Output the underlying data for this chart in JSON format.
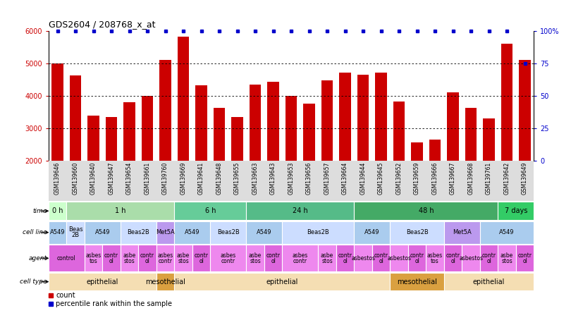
{
  "title": "GDS2604 / 208768_x_at",
  "samples": [
    "GSM139646",
    "GSM139660",
    "GSM139640",
    "GSM139647",
    "GSM139654",
    "GSM139661",
    "GSM139760",
    "GSM139669",
    "GSM139641",
    "GSM139648",
    "GSM139655",
    "GSM139663",
    "GSM139643",
    "GSM139653",
    "GSM139656",
    "GSM139657",
    "GSM139664",
    "GSM139644",
    "GSM139645",
    "GSM139652",
    "GSM139659",
    "GSM139666",
    "GSM139667",
    "GSM139668",
    "GSM139761",
    "GSM139642",
    "GSM139649"
  ],
  "counts": [
    4980,
    4620,
    3380,
    3340,
    3800,
    4000,
    5100,
    5820,
    4320,
    3620,
    3340,
    4330,
    4420,
    4000,
    3760,
    4460,
    4700,
    4650,
    4700,
    3820,
    2560,
    2640,
    4100,
    3620,
    3290,
    5600,
    5100
  ],
  "percentiles": [
    100,
    100,
    100,
    100,
    100,
    100,
    100,
    100,
    100,
    100,
    100,
    100,
    100,
    100,
    100,
    100,
    100,
    100,
    100,
    100,
    100,
    100,
    100,
    100,
    100,
    100,
    75
  ],
  "bar_color": "#cc0000",
  "dot_color": "#0000cc",
  "ymin": 2000,
  "ymax": 6000,
  "yticks": [
    2000,
    3000,
    4000,
    5000,
    6000
  ],
  "y2ticks": [
    0,
    25,
    50,
    75,
    100
  ],
  "y2labels": [
    "0",
    "25",
    "50",
    "75",
    "100%"
  ],
  "grid_dotted_at": [
    3000,
    4000,
    5000
  ],
  "time_segments": [
    {
      "text": "0 h",
      "start": 0,
      "end": 1,
      "color": "#ccffcc"
    },
    {
      "text": "1 h",
      "start": 1,
      "end": 7,
      "color": "#aaddaa"
    },
    {
      "text": "6 h",
      "start": 7,
      "end": 11,
      "color": "#66cc99"
    },
    {
      "text": "24 h",
      "start": 11,
      "end": 17,
      "color": "#55bb88"
    },
    {
      "text": "48 h",
      "start": 17,
      "end": 25,
      "color": "#44aa66"
    },
    {
      "text": "7 days",
      "start": 25,
      "end": 27,
      "color": "#33cc66"
    }
  ],
  "cellline_segments": [
    {
      "text": "A549",
      "start": 0,
      "end": 1,
      "color": "#aaccee"
    },
    {
      "text": "Beas\n2B",
      "start": 1,
      "end": 2,
      "color": "#ccddff"
    },
    {
      "text": "A549",
      "start": 2,
      "end": 4,
      "color": "#aaccee"
    },
    {
      "text": "Beas2B",
      "start": 4,
      "end": 6,
      "color": "#ccddff"
    },
    {
      "text": "Met5A",
      "start": 6,
      "end": 7,
      "color": "#bb99ee"
    },
    {
      "text": "A549",
      "start": 7,
      "end": 9,
      "color": "#aaccee"
    },
    {
      "text": "Beas2B",
      "start": 9,
      "end": 11,
      "color": "#ccddff"
    },
    {
      "text": "A549",
      "start": 11,
      "end": 13,
      "color": "#aaccee"
    },
    {
      "text": "Beas2B",
      "start": 13,
      "end": 17,
      "color": "#ccddff"
    },
    {
      "text": "A549",
      "start": 17,
      "end": 19,
      "color": "#aaccee"
    },
    {
      "text": "Beas2B",
      "start": 19,
      "end": 22,
      "color": "#ccddff"
    },
    {
      "text": "Met5A",
      "start": 22,
      "end": 24,
      "color": "#bb99ee"
    },
    {
      "text": "A549",
      "start": 24,
      "end": 27,
      "color": "#aaccee"
    }
  ],
  "agent_segments": [
    {
      "text": "control",
      "start": 0,
      "end": 2,
      "color": "#dd66dd"
    },
    {
      "text": "asbes\ntos",
      "start": 2,
      "end": 3,
      "color": "#ee88ee"
    },
    {
      "text": "contr\nol",
      "start": 3,
      "end": 4,
      "color": "#dd66dd"
    },
    {
      "text": "asbe\nstos",
      "start": 4,
      "end": 5,
      "color": "#ee88ee"
    },
    {
      "text": "contr\nol",
      "start": 5,
      "end": 6,
      "color": "#dd66dd"
    },
    {
      "text": "asbes\ncontr",
      "start": 6,
      "end": 7,
      "color": "#ee88ee"
    },
    {
      "text": "asbe\nstos",
      "start": 7,
      "end": 8,
      "color": "#ee88ee"
    },
    {
      "text": "contr\nol",
      "start": 8,
      "end": 9,
      "color": "#dd66dd"
    },
    {
      "text": "asbes\ncontr",
      "start": 9,
      "end": 11,
      "color": "#ee88ee"
    },
    {
      "text": "asbe\nstos",
      "start": 11,
      "end": 12,
      "color": "#ee88ee"
    },
    {
      "text": "contr\nol",
      "start": 12,
      "end": 13,
      "color": "#dd66dd"
    },
    {
      "text": "asbes\ncontr",
      "start": 13,
      "end": 15,
      "color": "#ee88ee"
    },
    {
      "text": "asbe\nstos",
      "start": 15,
      "end": 16,
      "color": "#ee88ee"
    },
    {
      "text": "contr\nol",
      "start": 16,
      "end": 17,
      "color": "#dd66dd"
    },
    {
      "text": "asbestos",
      "start": 17,
      "end": 18,
      "color": "#ee88ee"
    },
    {
      "text": "contr\nol",
      "start": 18,
      "end": 19,
      "color": "#dd66dd"
    },
    {
      "text": "asbestos",
      "start": 19,
      "end": 20,
      "color": "#ee88ee"
    },
    {
      "text": "contr\nol",
      "start": 20,
      "end": 21,
      "color": "#dd66dd"
    },
    {
      "text": "asbes\ntos",
      "start": 21,
      "end": 22,
      "color": "#ee88ee"
    },
    {
      "text": "contr\nol",
      "start": 22,
      "end": 23,
      "color": "#dd66dd"
    },
    {
      "text": "asbestos",
      "start": 23,
      "end": 24,
      "color": "#ee88ee"
    },
    {
      "text": "contr\nol",
      "start": 24,
      "end": 25,
      "color": "#dd66dd"
    },
    {
      "text": "asbe\nstos",
      "start": 25,
      "end": 26,
      "color": "#ee88ee"
    },
    {
      "text": "contr\nol",
      "start": 26,
      "end": 27,
      "color": "#dd66dd"
    }
  ],
  "celltype_segments": [
    {
      "text": "epithelial",
      "start": 0,
      "end": 6,
      "color": "#f5deb3"
    },
    {
      "text": "mesothelial",
      "start": 6,
      "end": 7,
      "color": "#daa040"
    },
    {
      "text": "epithelial",
      "start": 7,
      "end": 19,
      "color": "#f5deb3"
    },
    {
      "text": "mesothelial",
      "start": 19,
      "end": 22,
      "color": "#daa040"
    },
    {
      "text": "epithelial",
      "start": 22,
      "end": 27,
      "color": "#f5deb3"
    }
  ],
  "row_labels": [
    "time",
    "cell line",
    "agent",
    "cell type"
  ],
  "legend_items": [
    {
      "symbol": "s",
      "color": "#cc0000",
      "text": " count"
    },
    {
      "symbol": "s",
      "color": "#0000cc",
      "text": " percentile rank within the sample"
    }
  ],
  "bg_color": "#ffffff",
  "sample_bg": "#dddddd"
}
